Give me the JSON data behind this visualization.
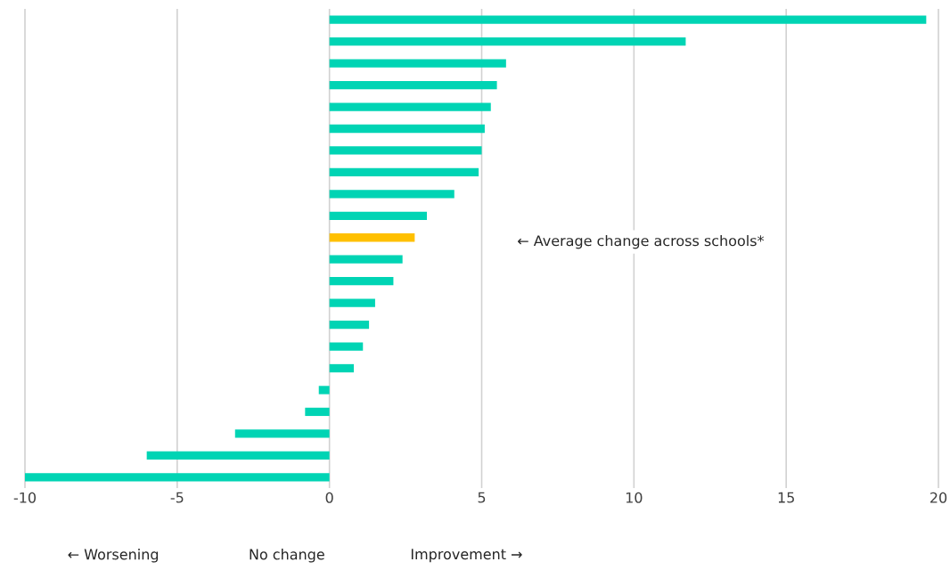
{
  "chart_data": {
    "type": "bar",
    "orientation": "horizontal",
    "categories": [
      null,
      null,
      null,
      null,
      null,
      null,
      null,
      null,
      null,
      null,
      null,
      null,
      null,
      null,
      null,
      null,
      null,
      null,
      null,
      null,
      null,
      null
    ],
    "values": [
      19.6,
      11.7,
      5.8,
      5.5,
      5.3,
      5.1,
      5.0,
      4.9,
      4.1,
      3.2,
      2.8,
      2.4,
      2.1,
      1.5,
      1.3,
      1.1,
      0.8,
      -0.35,
      -0.8,
      -3.1,
      -6.0,
      -10.0
    ],
    "colors": [
      "#00d4b4",
      "#00d4b4",
      "#00d4b4",
      "#00d4b4",
      "#00d4b4",
      "#00d4b4",
      "#00d4b4",
      "#00d4b4",
      "#00d4b4",
      "#00d4b4",
      "#ffc000",
      "#00d4b4",
      "#00d4b4",
      "#00d4b4",
      "#00d4b4",
      "#00d4b4",
      "#00d4b4",
      "#00d4b4",
      "#00d4b4",
      "#00d4b4",
      "#00d4b4",
      "#00d4b4"
    ],
    "xlim": [
      -10,
      20
    ],
    "xticks": [
      -10,
      -5,
      0,
      5,
      10,
      15,
      20
    ],
    "grid": "x",
    "annotations": [
      "← Average change across schools*",
      "← Worsening",
      "No change",
      "Improvement →"
    ]
  }
}
